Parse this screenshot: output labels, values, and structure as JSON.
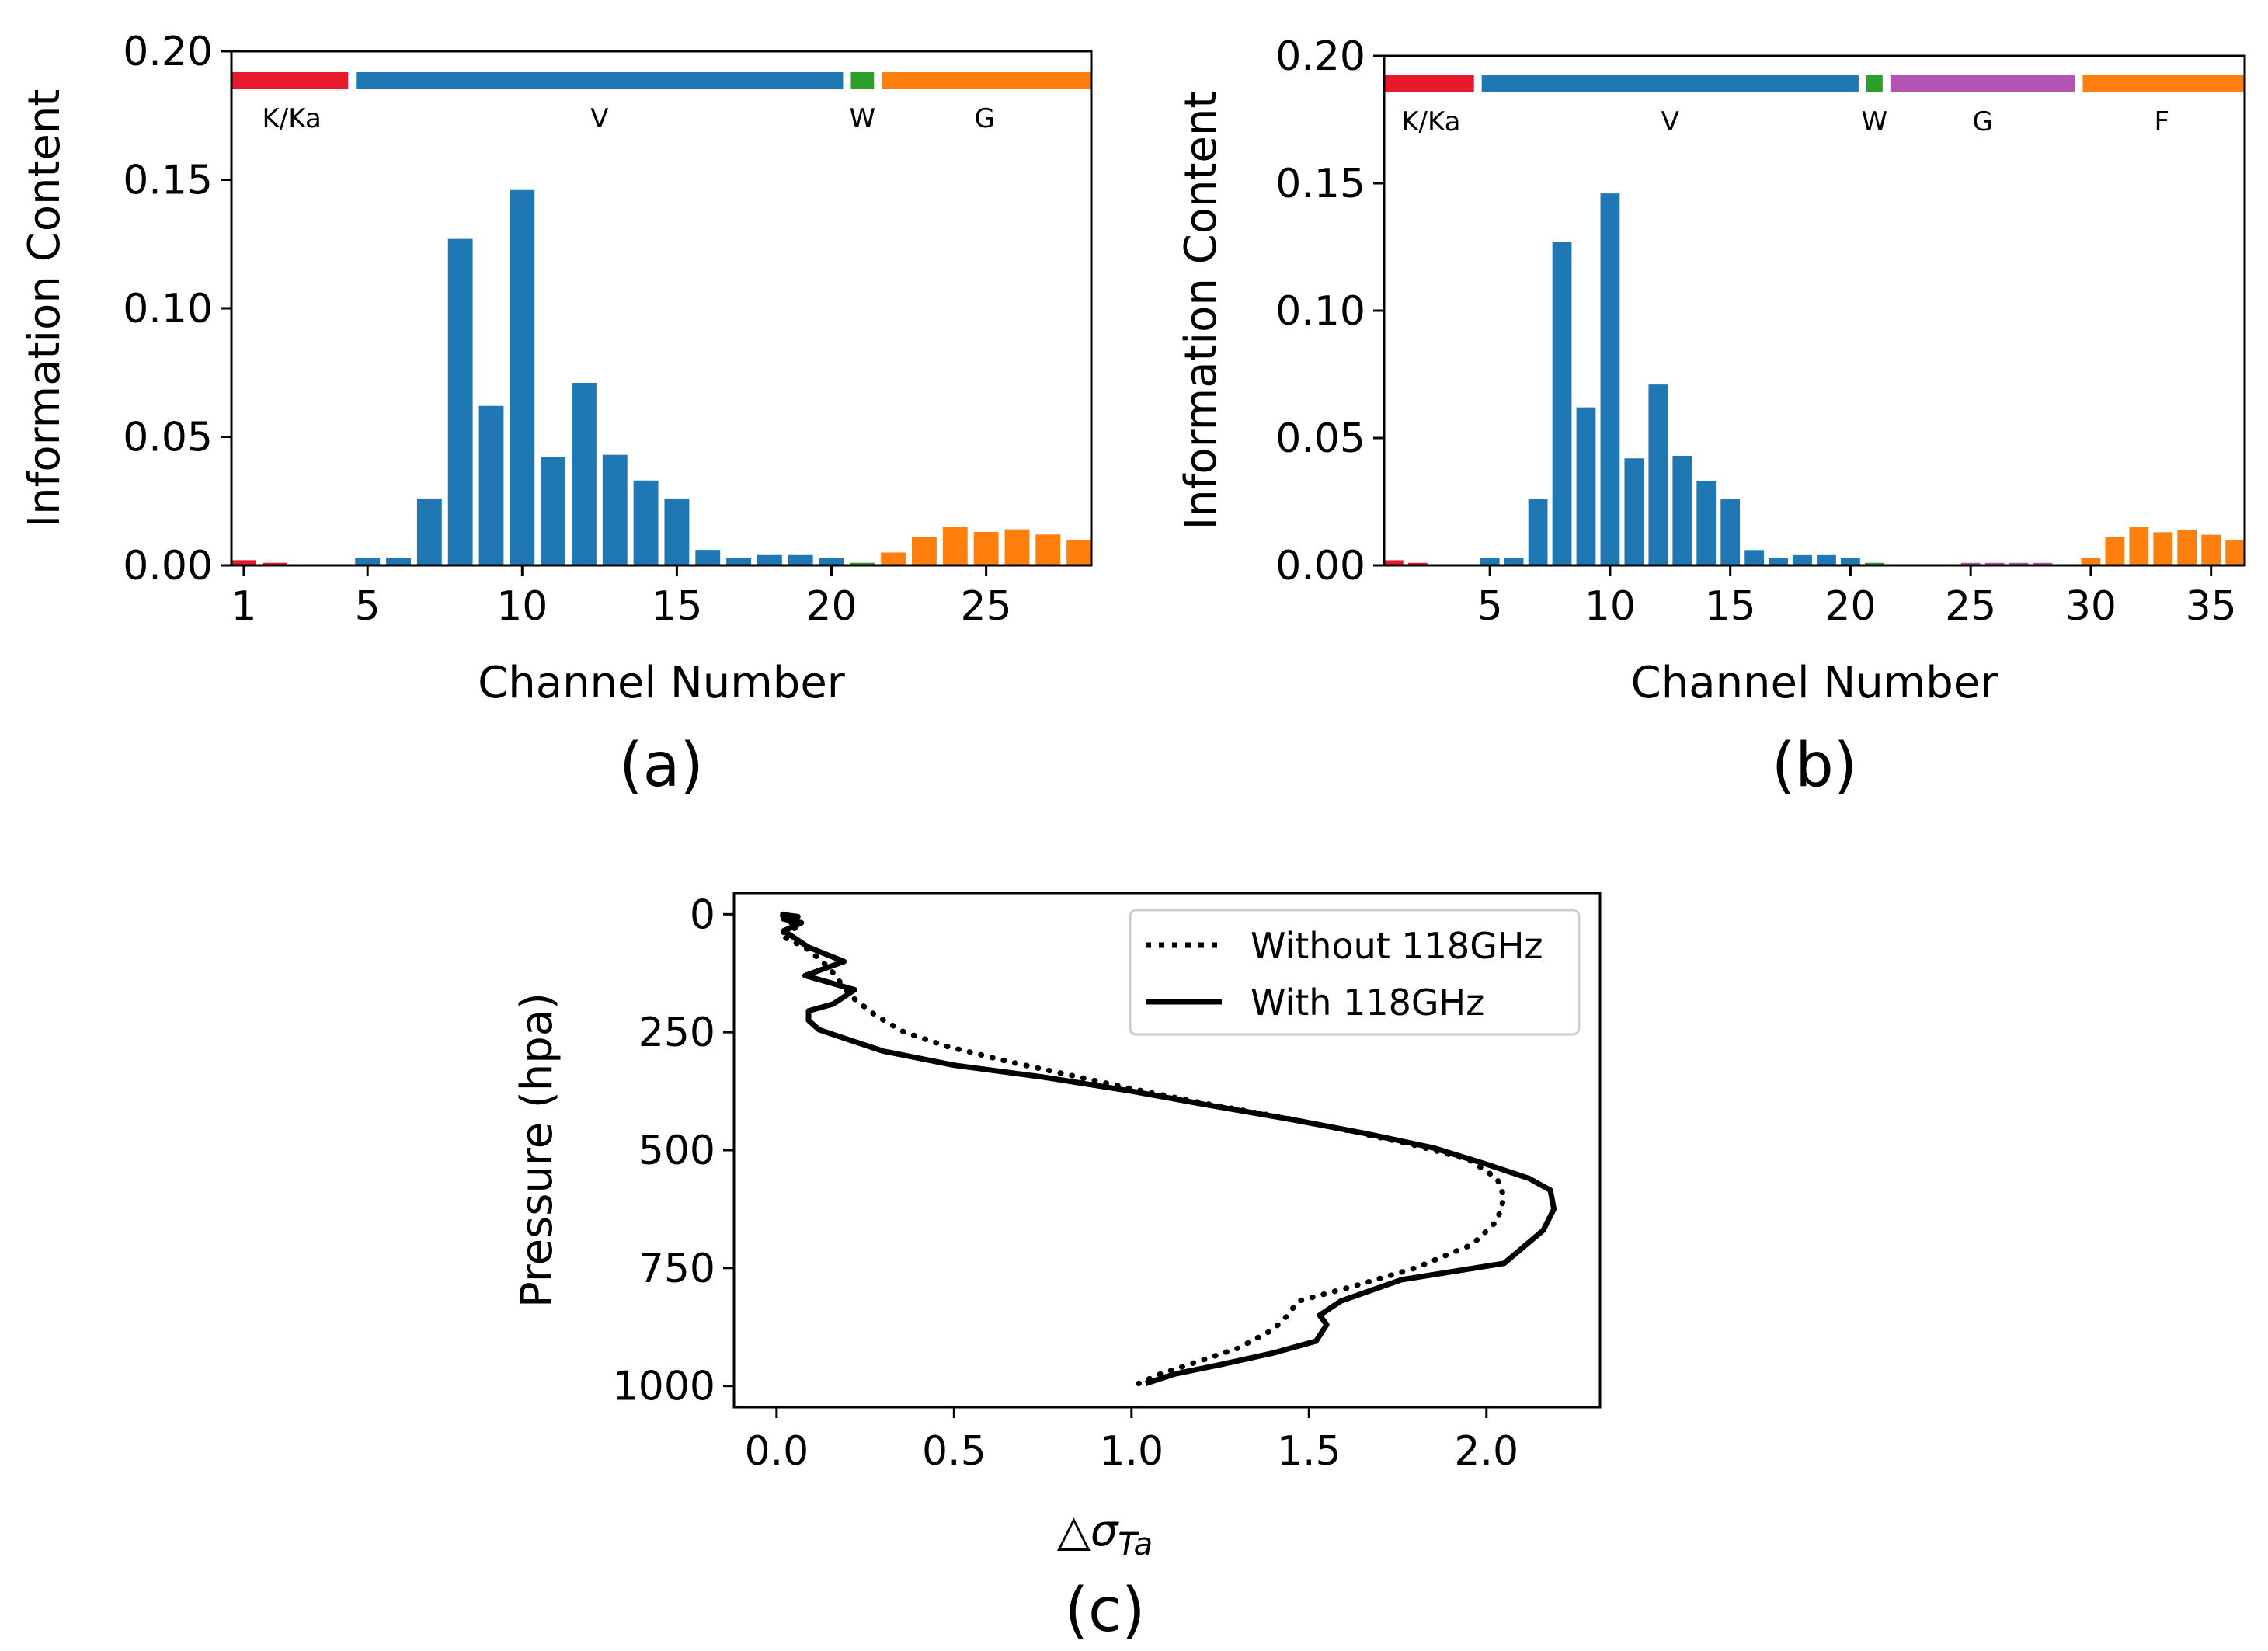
{
  "chart_data": [
    {
      "panel": "(a)",
      "type": "bar",
      "ylabel": "Information Content",
      "xlabel": "Channel Number",
      "ylim": [
        0,
        0.2
      ],
      "xlim": [
        0.6,
        28.4
      ],
      "yticks": [
        0.0,
        0.05,
        0.1,
        0.15,
        0.2
      ],
      "ytick_labels": [
        "0.00",
        "0.05",
        "0.10",
        "0.15",
        "0.20"
      ],
      "xticks": [
        1,
        5,
        10,
        15,
        20,
        25
      ],
      "xtick_labels": [
        "1",
        "5",
        "10",
        "15",
        "20",
        "25"
      ],
      "channels": [
        1,
        2,
        3,
        4,
        5,
        6,
        7,
        8,
        9,
        10,
        11,
        12,
        13,
        14,
        15,
        16,
        17,
        18,
        19,
        20,
        21,
        22,
        23,
        24,
        25,
        26,
        27,
        28
      ],
      "values": [
        0.002,
        0.001,
        0,
        0,
        0.003,
        0.003,
        0.026,
        0.127,
        0.062,
        0.146,
        0.042,
        0.071,
        0.043,
        0.033,
        0.026,
        0.006,
        0.003,
        0.004,
        0.004,
        0.003,
        0.001,
        0.005,
        0.011,
        0.015,
        0.013,
        0.014,
        0.012,
        0.01
      ],
      "colors": [
        "#e8192c",
        "#e8192c",
        "#e8192c",
        "#e8192c",
        "#1f77b4",
        "#1f77b4",
        "#1f77b4",
        "#1f77b4",
        "#1f77b4",
        "#1f77b4",
        "#1f77b4",
        "#1f77b4",
        "#1f77b4",
        "#1f77b4",
        "#1f77b4",
        "#1f77b4",
        "#1f77b4",
        "#1f77b4",
        "#1f77b4",
        "#1f77b4",
        "#2ca02c",
        "#ff7f0e",
        "#ff7f0e",
        "#ff7f0e",
        "#ff7f0e",
        "#ff7f0e",
        "#ff7f0e",
        "#ff7f0e"
      ],
      "bands": [
        {
          "label": "K/Ka",
          "from": 0.6,
          "to": 4.5,
          "color": "#e8192c"
        },
        {
          "label": "V",
          "from": 4.5,
          "to": 20.5,
          "color": "#1f77b4"
        },
        {
          "label": "W",
          "from": 20.5,
          "to": 21.5,
          "color": "#2ca02c"
        },
        {
          "label": "G",
          "from": 21.5,
          "to": 28.4,
          "color": "#ff7f0e"
        }
      ],
      "caption": "(a)"
    },
    {
      "panel": "(b)",
      "type": "bar",
      "ylabel": "Information Content",
      "xlabel": "Channel Number",
      "ylim": [
        0,
        0.2
      ],
      "xlim": [
        0.6,
        36.4
      ],
      "yticks": [
        0.0,
        0.05,
        0.1,
        0.15,
        0.2
      ],
      "ytick_labels": [
        "0.00",
        "0.05",
        "0.10",
        "0.15",
        "0.20"
      ],
      "xticks": [
        5,
        10,
        15,
        20,
        25,
        30,
        35
      ],
      "xtick_labels": [
        "5",
        "10",
        "15",
        "20",
        "25",
        "30",
        "35"
      ],
      "channels": [
        1,
        2,
        3,
        4,
        5,
        6,
        7,
        8,
        9,
        10,
        11,
        12,
        13,
        14,
        15,
        16,
        17,
        18,
        19,
        20,
        21,
        22,
        23,
        24,
        25,
        26,
        27,
        28,
        29,
        30,
        31,
        32,
        33,
        34,
        35,
        36
      ],
      "values": [
        0.002,
        0.001,
        0,
        0,
        0.003,
        0.003,
        0.026,
        0.127,
        0.062,
        0.146,
        0.042,
        0.071,
        0.043,
        0.033,
        0.026,
        0.006,
        0.003,
        0.004,
        0.004,
        0.003,
        0.001,
        0,
        0,
        0,
        0.001,
        0.001,
        0.001,
        0.001,
        0,
        0.003,
        0.011,
        0.015,
        0.013,
        0.014,
        0.012,
        0.01
      ],
      "colors": [
        "#e8192c",
        "#e8192c",
        "#e8192c",
        "#e8192c",
        "#1f77b4",
        "#1f77b4",
        "#1f77b4",
        "#1f77b4",
        "#1f77b4",
        "#1f77b4",
        "#1f77b4",
        "#1f77b4",
        "#1f77b4",
        "#1f77b4",
        "#1f77b4",
        "#1f77b4",
        "#1f77b4",
        "#1f77b4",
        "#1f77b4",
        "#1f77b4",
        "#2ca02c",
        "#b455b4",
        "#b455b4",
        "#b455b4",
        "#b455b4",
        "#b455b4",
        "#b455b4",
        "#b455b4",
        "#b455b4",
        "#ff7f0e",
        "#ff7f0e",
        "#ff7f0e",
        "#ff7f0e",
        "#ff7f0e",
        "#ff7f0e",
        "#ff7f0e"
      ],
      "bands": [
        {
          "label": "K/Ka",
          "from": 0.6,
          "to": 4.5,
          "color": "#e8192c"
        },
        {
          "label": "V",
          "from": 4.5,
          "to": 20.5,
          "color": "#1f77b4"
        },
        {
          "label": "W",
          "from": 20.5,
          "to": 21.5,
          "color": "#2ca02c"
        },
        {
          "label": "G",
          "from": 21.5,
          "to": 29.5,
          "color": "#b455b4"
        },
        {
          "label": "F",
          "from": 29.5,
          "to": 36.4,
          "color": "#ff7f0e"
        }
      ],
      "caption": "(b)"
    },
    {
      "panel": "(c)",
      "type": "line",
      "xlabel_main": "△σ",
      "xlabel_sub": "Ta",
      "ylabel": "Pressure (hpa)",
      "xlim": [
        -0.12,
        2.32
      ],
      "ylim": [
        1045,
        -45
      ],
      "xticks": [
        0.0,
        0.5,
        1.0,
        1.5,
        2.0
      ],
      "xtick_labels": [
        "0.0",
        "0.5",
        "1.0",
        "1.5",
        "2.0"
      ],
      "yticks": [
        0,
        250,
        500,
        750,
        1000
      ],
      "ytick_labels": [
        "0",
        "250",
        "500",
        "750",
        "1000"
      ],
      "legend_position": "top-right",
      "series": [
        {
          "name": "Without 118GHz",
          "style": "dotted",
          "x": [
            0.02,
            0.05,
            0.03,
            0.06,
            0.05,
            0.02,
            0.01,
            0.04,
            0.09,
            0.12,
            0.15,
            0.17,
            0.19,
            0.22,
            0.28,
            0.36,
            0.48,
            0.64,
            0.82,
            1.0,
            1.2,
            1.42,
            1.62,
            1.8,
            1.95,
            2.03,
            2.05,
            2.03,
            1.96,
            1.8,
            1.62,
            1.47,
            1.44,
            1.4,
            1.3,
            1.18,
            1.08,
            1.02
          ],
          "y": [
            0,
            5,
            15,
            22,
            30,
            38,
            45,
            55,
            75,
            95,
            115,
            135,
            155,
            180,
            215,
            250,
            280,
            310,
            340,
            370,
            400,
            430,
            460,
            490,
            520,
            560,
            600,
            650,
            700,
            750,
            790,
            820,
            850,
            880,
            920,
            950,
            975,
            995
          ]
        },
        {
          "name": "With 118GHz",
          "style": "solid",
          "x": [
            0.01,
            0.06,
            0.02,
            0.07,
            0.05,
            0.02,
            0.09,
            0.19,
            0.08,
            0.22,
            0.16,
            0.09,
            0.09,
            0.12,
            0.2,
            0.3,
            0.5,
            0.75,
            1.0,
            1.22,
            1.45,
            1.66,
            1.85,
            2.0,
            2.12,
            2.18,
            2.19,
            2.16,
            2.05,
            1.76,
            1.59,
            1.53,
            1.55,
            1.52,
            1.4,
            1.25,
            1.12,
            1.04
          ],
          "y": [
            0,
            5,
            10,
            18,
            25,
            35,
            70,
            100,
            130,
            160,
            190,
            205,
            225,
            245,
            265,
            290,
            320,
            345,
            375,
            405,
            435,
            465,
            495,
            530,
            560,
            585,
            625,
            670,
            740,
            775,
            820,
            850,
            870,
            905,
            930,
            955,
            975,
            995
          ]
        }
      ],
      "caption": "(c)"
    }
  ]
}
